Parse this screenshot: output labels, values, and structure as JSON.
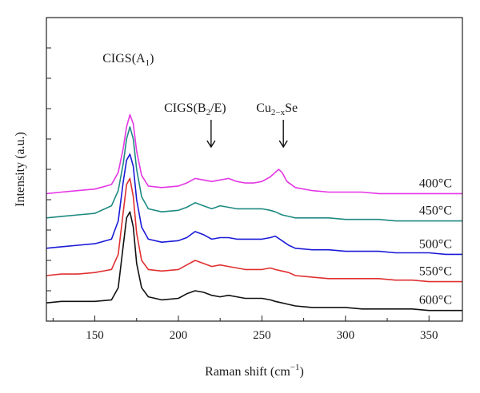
{
  "chart_data": {
    "type": "line",
    "xlabel": "Raman shift (cm",
    "xlabel_sup": "−1",
    "xlabel_close": ")",
    "ylabel": "Intensity (a.u.)",
    "xlim": [
      121,
      370
    ],
    "ylim": [
      0,
      1
    ],
    "xticks": [
      150,
      200,
      250,
      300,
      350
    ],
    "colors": {
      "400": "#e436e4",
      "450": "#1e8a82",
      "500": "#1a1ad8",
      "550": "#e03030",
      "600": "#111111"
    },
    "annotations": [
      {
        "base": "CIGS(A",
        "sub": "1",
        "tail": ")",
        "x": 170
      },
      {
        "base": "CIGS(B",
        "sub": "2",
        "tail": "/E)",
        "x": 210
      },
      {
        "base": "Cu",
        "sub": "2−x",
        "tail": "Se",
        "x": 259
      }
    ],
    "series": [
      {
        "name": "400°C",
        "x": [
          121,
          130,
          140,
          150,
          160,
          164,
          167,
          169,
          171,
          173,
          175,
          178,
          182,
          190,
          200,
          205,
          210,
          215,
          220,
          225,
          230,
          235,
          240,
          245,
          250,
          255,
          258,
          260,
          262,
          265,
          270,
          275,
          280,
          290,
          300,
          310,
          320,
          330,
          340,
          350,
          360,
          370
        ],
        "y": [
          0.42,
          0.425,
          0.43,
          0.435,
          0.45,
          0.49,
          0.57,
          0.64,
          0.68,
          0.65,
          0.56,
          0.48,
          0.445,
          0.44,
          0.445,
          0.455,
          0.47,
          0.465,
          0.46,
          0.465,
          0.47,
          0.46,
          0.455,
          0.455,
          0.46,
          0.475,
          0.49,
          0.5,
          0.49,
          0.46,
          0.44,
          0.435,
          0.43,
          0.425,
          0.425,
          0.425,
          0.42,
          0.42,
          0.42,
          0.42,
          0.42,
          0.42
        ]
      },
      {
        "name": "450°C",
        "x": [
          121,
          130,
          140,
          150,
          160,
          164,
          167,
          169,
          171,
          173,
          175,
          178,
          182,
          190,
          200,
          205,
          210,
          215,
          220,
          225,
          230,
          235,
          240,
          245,
          250,
          255,
          258,
          262,
          266,
          270,
          280,
          290,
          300,
          310,
          320,
          330,
          340,
          350,
          360,
          370
        ],
        "y": [
          0.34,
          0.345,
          0.35,
          0.355,
          0.38,
          0.43,
          0.52,
          0.6,
          0.64,
          0.6,
          0.5,
          0.41,
          0.37,
          0.36,
          0.365,
          0.375,
          0.39,
          0.38,
          0.37,
          0.38,
          0.375,
          0.37,
          0.37,
          0.37,
          0.37,
          0.365,
          0.36,
          0.35,
          0.345,
          0.34,
          0.34,
          0.34,
          0.335,
          0.335,
          0.335,
          0.33,
          0.33,
          0.33,
          0.33,
          0.33
        ]
      },
      {
        "name": "500°C",
        "x": [
          121,
          130,
          140,
          150,
          160,
          164,
          167,
          169,
          171,
          173,
          175,
          178,
          182,
          190,
          200,
          205,
          210,
          215,
          220,
          225,
          230,
          235,
          240,
          245,
          250,
          255,
          258,
          262,
          266,
          270,
          280,
          290,
          300,
          310,
          320,
          330,
          340,
          350,
          360,
          370
        ],
        "y": [
          0.24,
          0.245,
          0.25,
          0.255,
          0.27,
          0.33,
          0.46,
          0.53,
          0.55,
          0.51,
          0.4,
          0.31,
          0.27,
          0.26,
          0.265,
          0.275,
          0.295,
          0.285,
          0.27,
          0.275,
          0.275,
          0.27,
          0.27,
          0.27,
          0.27,
          0.275,
          0.28,
          0.265,
          0.25,
          0.24,
          0.235,
          0.235,
          0.23,
          0.23,
          0.23,
          0.225,
          0.225,
          0.225,
          0.22,
          0.22
        ]
      },
      {
        "name": "550°C",
        "x": [
          121,
          130,
          140,
          150,
          160,
          164,
          167,
          169,
          171,
          173,
          175,
          178,
          182,
          190,
          200,
          205,
          210,
          215,
          220,
          225,
          230,
          235,
          240,
          245,
          250,
          255,
          258,
          262,
          266,
          270,
          280,
          290,
          300,
          310,
          320,
          330,
          340,
          350,
          360,
          370
        ],
        "y": [
          0.15,
          0.155,
          0.155,
          0.16,
          0.17,
          0.22,
          0.36,
          0.45,
          0.47,
          0.41,
          0.29,
          0.2,
          0.17,
          0.165,
          0.17,
          0.185,
          0.2,
          0.19,
          0.18,
          0.185,
          0.18,
          0.175,
          0.17,
          0.17,
          0.17,
          0.175,
          0.17,
          0.165,
          0.16,
          0.15,
          0.145,
          0.14,
          0.14,
          0.14,
          0.14,
          0.135,
          0.135,
          0.13,
          0.13,
          0.13
        ]
      },
      {
        "name": "600°C",
        "x": [
          121,
          130,
          140,
          150,
          160,
          164,
          167,
          169,
          171,
          173,
          175,
          178,
          182,
          190,
          200,
          205,
          210,
          215,
          220,
          225,
          230,
          235,
          240,
          245,
          250,
          255,
          258,
          262,
          266,
          270,
          280,
          290,
          300,
          310,
          320,
          330,
          340,
          350,
          360,
          370
        ],
        "y": [
          0.06,
          0.065,
          0.065,
          0.065,
          0.07,
          0.11,
          0.25,
          0.34,
          0.36,
          0.31,
          0.19,
          0.11,
          0.08,
          0.07,
          0.075,
          0.09,
          0.1,
          0.095,
          0.085,
          0.08,
          0.085,
          0.08,
          0.075,
          0.075,
          0.075,
          0.07,
          0.065,
          0.06,
          0.055,
          0.05,
          0.045,
          0.045,
          0.045,
          0.04,
          0.04,
          0.04,
          0.04,
          0.035,
          0.035,
          0.035
        ]
      }
    ]
  }
}
